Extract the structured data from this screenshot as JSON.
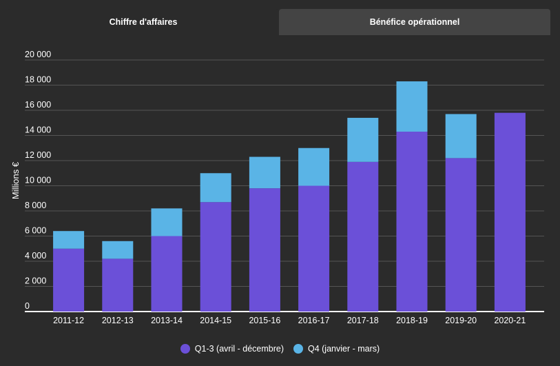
{
  "tabs": [
    {
      "label": "Chiffre d'affaires",
      "active": true
    },
    {
      "label": "Bénéfice opérationnel",
      "active": false
    }
  ],
  "colors": {
    "q13": "#6b50d8",
    "q4": "#5ab4e6",
    "grid": "#555555",
    "axis": "#ffffff",
    "background": "#2b2b2b"
  },
  "chart_data": {
    "type": "bar",
    "stacked": true,
    "ylabel": "Millions €",
    "xlabel": "",
    "ylim": [
      0,
      20000
    ],
    "yticks": [
      0,
      2000,
      4000,
      6000,
      8000,
      10000,
      12000,
      14000,
      16000,
      18000,
      20000
    ],
    "ytick_labels": [
      "0",
      "2 000",
      "4 000",
      "6 000",
      "8 000",
      "10 000",
      "12 000",
      "14 000",
      "16 000",
      "18 000",
      "20 000"
    ],
    "grid": true,
    "legend_position": "bottom",
    "categories": [
      "2011-12",
      "2012-13",
      "2013-14",
      "2014-15",
      "2015-16",
      "2016-17",
      "2017-18",
      "2018-19",
      "2019-20",
      "2020-21"
    ],
    "series": [
      {
        "name": "Q1-3 (avril - décembre)",
        "color": "#6b50d8",
        "values": [
          5000,
          4200,
          6000,
          8700,
          9800,
          10000,
          11900,
          14300,
          12200,
          15800
        ]
      },
      {
        "name": "Q4 (janvier - mars)",
        "color": "#5ab4e6",
        "values": [
          1400,
          1400,
          2200,
          2300,
          2500,
          3000,
          3500,
          4000,
          3500,
          0
        ]
      }
    ]
  }
}
